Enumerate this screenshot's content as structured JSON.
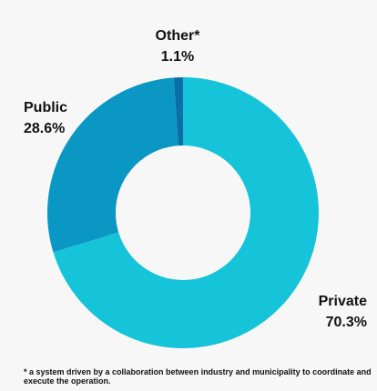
{
  "chart_data": {
    "type": "pie",
    "subtype": "donut",
    "slices": [
      {
        "label": "Private",
        "value_text": "70.3%",
        "value": 70.3,
        "color": "#16c4d9"
      },
      {
        "label": "Public",
        "value_text": "28.6%",
        "value": 28.6,
        "color": "#0b97c3"
      },
      {
        "label": "Other*",
        "value_text": "1.1%",
        "value": 1.1,
        "color": "#0a6fa7"
      }
    ],
    "footnote": "* a system driven by a collaboration between industry and municipality to coordinate and execute the operation."
  }
}
